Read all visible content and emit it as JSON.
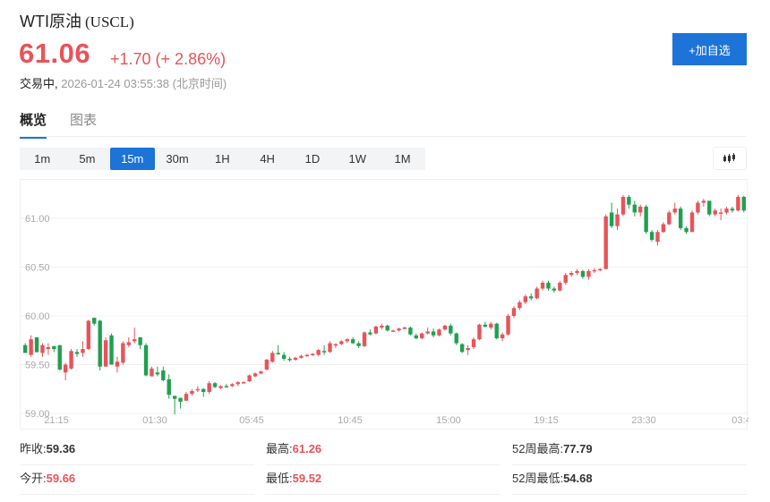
{
  "header": {
    "name": "WTI原油",
    "code": "(USCL)",
    "price": "61.06",
    "change": "+1.70 (+ 2.86%)",
    "status": "交易中,",
    "timestamp": "2026-01-24 03:55:38 (北京时间)",
    "add_button": "+加自选"
  },
  "tabs": [
    {
      "label": "概览",
      "active": true
    },
    {
      "label": "图表",
      "active": false
    }
  ],
  "periods": [
    {
      "label": "1m"
    },
    {
      "label": "5m"
    },
    {
      "label": "15m",
      "active": true
    },
    {
      "label": "30m"
    },
    {
      "label": "1H"
    },
    {
      "label": "4H"
    },
    {
      "label": "1D"
    },
    {
      "label": "1W"
    },
    {
      "label": "1M"
    }
  ],
  "colors": {
    "up": "#e8535a",
    "down": "#20a050",
    "accent": "#1c73d8"
  },
  "stats": {
    "prev_close_label": "昨收:",
    "prev_close": "59.36",
    "high_label": "最高:",
    "high": "61.26",
    "wk52_high_label": "52周最高:",
    "wk52_high": "77.79",
    "open_label": "今开:",
    "open": "59.66",
    "low_label": "最低:",
    "low": "59.52",
    "wk52_low_label": "52周最低:",
    "wk52_low": "54.68"
  },
  "chart_data": {
    "type": "candlestick",
    "title": "WTI原油 (USCL) 15m",
    "xlabel": "",
    "ylabel": "",
    "ylim": [
      58.95,
      61.35
    ],
    "y_ticks": [
      "59.00",
      "59.50",
      "60.00",
      "60.50",
      "61.00"
    ],
    "x_ticks": [
      "21:15",
      "01:30",
      "05:45",
      "10:45",
      "15:00",
      "19:15",
      "23:30",
      "03:4"
    ],
    "grid": true,
    "up_color": "#e8535a",
    "down_color": "#20a050",
    "candles": [
      [
        59.7,
        59.72,
        59.62,
        59.62
      ],
      [
        59.6,
        59.8,
        59.58,
        59.76
      ],
      [
        59.78,
        59.78,
        59.62,
        59.63
      ],
      [
        59.62,
        59.72,
        59.58,
        59.7
      ],
      [
        59.66,
        59.72,
        59.6,
        59.68
      ],
      [
        59.69,
        59.69,
        59.63,
        59.66
      ],
      [
        59.7,
        59.7,
        59.44,
        59.45
      ],
      [
        59.42,
        59.52,
        59.34,
        59.5
      ],
      [
        59.46,
        59.66,
        59.45,
        59.64
      ],
      [
        59.63,
        59.66,
        59.58,
        59.61
      ],
      [
        59.62,
        59.74,
        59.58,
        59.66
      ],
      [
        59.66,
        59.96,
        59.65,
        59.95
      ],
      [
        59.98,
        59.98,
        59.9,
        59.92
      ],
      [
        59.95,
        59.96,
        59.44,
        59.48
      ],
      [
        59.48,
        59.78,
        59.48,
        59.75
      ],
      [
        59.8,
        59.82,
        59.5,
        59.5
      ],
      [
        59.48,
        59.58,
        59.42,
        59.53
      ],
      [
        59.52,
        59.74,
        59.5,
        59.72
      ],
      [
        59.7,
        59.78,
        59.68,
        59.73
      ],
      [
        59.74,
        59.88,
        59.72,
        59.76
      ],
      [
        59.78,
        59.78,
        59.66,
        59.7
      ],
      [
        59.7,
        59.72,
        59.38,
        59.39
      ],
      [
        59.38,
        59.48,
        59.38,
        59.46
      ],
      [
        59.42,
        59.48,
        59.38,
        59.4
      ],
      [
        59.44,
        59.48,
        59.33,
        59.34
      ],
      [
        59.35,
        59.4,
        59.15,
        59.19
      ],
      [
        59.18,
        59.18,
        58.99,
        59.15
      ],
      [
        59.16,
        59.16,
        59.05,
        59.12
      ],
      [
        59.13,
        59.22,
        59.13,
        59.2
      ],
      [
        59.2,
        59.25,
        59.18,
        59.23
      ],
      [
        59.24,
        59.28,
        59.22,
        59.25
      ],
      [
        59.25,
        59.26,
        59.17,
        59.22
      ],
      [
        59.22,
        59.33,
        59.2,
        59.31
      ],
      [
        59.31,
        59.32,
        59.26,
        59.27
      ],
      [
        59.26,
        59.29,
        59.25,
        59.28
      ],
      [
        59.28,
        59.3,
        59.27,
        59.27
      ],
      [
        59.28,
        59.31,
        59.27,
        59.3
      ],
      [
        59.3,
        59.33,
        59.28,
        59.32
      ],
      [
        59.32,
        59.33,
        59.31,
        59.32
      ],
      [
        59.33,
        59.4,
        59.32,
        59.39
      ],
      [
        59.38,
        59.42,
        59.37,
        59.41
      ],
      [
        59.41,
        59.44,
        59.4,
        59.43
      ],
      [
        59.45,
        59.56,
        59.44,
        59.55
      ],
      [
        59.53,
        59.64,
        59.52,
        59.62
      ],
      [
        59.62,
        59.7,
        59.6,
        59.61
      ],
      [
        59.6,
        59.63,
        59.54,
        59.56
      ],
      [
        59.56,
        59.58,
        59.53,
        59.55
      ],
      [
        59.55,
        59.58,
        59.54,
        59.57
      ],
      [
        59.57,
        59.6,
        59.56,
        59.59
      ],
      [
        59.59,
        59.61,
        59.58,
        59.6
      ],
      [
        59.6,
        59.62,
        59.59,
        59.61
      ],
      [
        59.6,
        59.66,
        59.59,
        59.65
      ],
      [
        59.64,
        59.7,
        59.6,
        59.63
      ],
      [
        59.63,
        59.74,
        59.62,
        59.72
      ],
      [
        59.7,
        59.72,
        59.67,
        59.71
      ],
      [
        59.71,
        59.75,
        59.7,
        59.74
      ],
      [
        59.74,
        59.77,
        59.72,
        59.76
      ],
      [
        59.76,
        59.78,
        59.71,
        59.72
      ],
      [
        59.72,
        59.74,
        59.67,
        59.69
      ],
      [
        59.69,
        59.84,
        59.68,
        59.83
      ],
      [
        59.83,
        59.86,
        59.8,
        59.81
      ],
      [
        59.82,
        59.9,
        59.81,
        59.89
      ],
      [
        59.88,
        59.92,
        59.86,
        59.9
      ],
      [
        59.9,
        59.91,
        59.84,
        59.85
      ],
      [
        59.85,
        59.86,
        59.84,
        59.85
      ],
      [
        59.85,
        59.88,
        59.84,
        59.87
      ],
      [
        59.87,
        59.89,
        59.86,
        59.88
      ],
      [
        59.88,
        59.89,
        59.8,
        59.81
      ],
      [
        59.8,
        59.82,
        59.76,
        59.77
      ],
      [
        59.77,
        59.83,
        59.76,
        59.82
      ],
      [
        59.82,
        59.88,
        59.81,
        59.84
      ],
      [
        59.84,
        59.87,
        59.78,
        59.8
      ],
      [
        59.8,
        59.87,
        59.79,
        59.86
      ],
      [
        59.86,
        59.91,
        59.85,
        59.9
      ],
      [
        59.9,
        59.92,
        59.8,
        59.82
      ],
      [
        59.82,
        59.83,
        59.7,
        59.72
      ],
      [
        59.71,
        59.72,
        59.62,
        59.63
      ],
      [
        59.65,
        59.7,
        59.6,
        59.67
      ],
      [
        59.68,
        59.78,
        59.66,
        59.76
      ],
      [
        59.76,
        59.92,
        59.75,
        59.91
      ],
      [
        59.91,
        59.94,
        59.88,
        59.89
      ],
      [
        59.88,
        59.94,
        59.86,
        59.92
      ],
      [
        59.92,
        59.93,
        59.76,
        59.77
      ],
      [
        59.77,
        59.83,
        59.74,
        59.81
      ],
      [
        59.81,
        60.02,
        59.8,
        60.0
      ],
      [
        60.0,
        60.1,
        59.98,
        60.08
      ],
      [
        60.08,
        60.16,
        60.06,
        60.14
      ],
      [
        60.14,
        60.22,
        60.12,
        60.2
      ],
      [
        60.2,
        60.23,
        60.16,
        60.18
      ],
      [
        60.18,
        60.3,
        60.17,
        60.28
      ],
      [
        60.28,
        60.36,
        60.26,
        60.34
      ],
      [
        60.34,
        60.36,
        60.26,
        60.28
      ],
      [
        60.28,
        60.3,
        60.24,
        60.26
      ],
      [
        60.26,
        60.36,
        60.25,
        60.34
      ],
      [
        60.34,
        60.44,
        60.32,
        60.42
      ],
      [
        60.42,
        60.46,
        60.4,
        60.44
      ],
      [
        60.44,
        60.48,
        60.42,
        60.46
      ],
      [
        60.46,
        60.47,
        60.38,
        60.4
      ],
      [
        60.4,
        60.48,
        60.37,
        60.46
      ],
      [
        60.46,
        60.49,
        60.44,
        60.47
      ],
      [
        60.47,
        60.49,
        60.46,
        60.48
      ],
      [
        60.48,
        61.04,
        60.48,
        61.02
      ],
      [
        61.06,
        61.16,
        60.9,
        60.92
      ],
      [
        60.92,
        61.1,
        60.88,
        61.04
      ],
      [
        61.04,
        61.24,
        61.02,
        61.22
      ],
      [
        61.22,
        61.24,
        61.1,
        61.14
      ],
      [
        61.14,
        61.18,
        61.02,
        61.06
      ],
      [
        61.06,
        61.14,
        61.02,
        61.12
      ],
      [
        61.12,
        61.14,
        60.84,
        60.86
      ],
      [
        60.86,
        60.88,
        60.76,
        60.78
      ],
      [
        60.76,
        60.88,
        60.72,
        60.86
      ],
      [
        60.86,
        60.96,
        60.85,
        60.94
      ],
      [
        60.94,
        61.08,
        60.93,
        61.06
      ],
      [
        61.06,
        61.16,
        61.04,
        61.1
      ],
      [
        61.1,
        61.12,
        60.88,
        60.9
      ],
      [
        60.9,
        60.92,
        60.84,
        60.86
      ],
      [
        60.86,
        61.08,
        60.86,
        61.06
      ],
      [
        61.06,
        61.18,
        61.04,
        61.16
      ],
      [
        61.16,
        61.2,
        61.12,
        61.18
      ],
      [
        61.18,
        61.18,
        61.02,
        61.04
      ],
      [
        61.04,
        61.1,
        61.02,
        61.08
      ],
      [
        61.06,
        61.1,
        60.98,
        61.06
      ],
      [
        61.06,
        61.12,
        61.04,
        61.1
      ],
      [
        61.1,
        61.12,
        61.06,
        61.08
      ],
      [
        61.08,
        61.24,
        61.07,
        61.22
      ],
      [
        61.22,
        61.23,
        61.06,
        61.08
      ]
    ]
  }
}
